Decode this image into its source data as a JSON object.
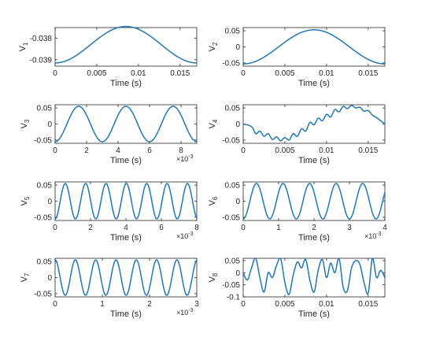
{
  "chart_data": [
    {
      "type": "line",
      "ylabel_main": "V",
      "ylabel_sub": "1",
      "xlabel": "Time (s)",
      "xlim": [
        0,
        0.017
      ],
      "ylim": [
        -0.0393,
        -0.0375
      ],
      "xticks": [
        0,
        0.005,
        0.01,
        0.015
      ],
      "xtick_labels": [
        "0",
        "0.005",
        "0.01",
        "0.015"
      ],
      "yticks": [
        -0.039,
        -0.038
      ],
      "ytick_labels": [
        "-0.039",
        "-0.038"
      ],
      "x_multiplier": "",
      "series": [
        {
          "values": {
            "kind": "cosine",
            "mean": -0.0383,
            "amplitude": 0.00085,
            "period": 0.017,
            "phase": 3.14159
          }
        }
      ]
    },
    {
      "type": "line",
      "ylabel_main": "V",
      "ylabel_sub": "2",
      "xlabel": "Time (s)",
      "xlim": [
        0,
        0.017
      ],
      "ylim": [
        -0.06,
        0.06
      ],
      "xticks": [
        0,
        0.005,
        0.01,
        0.015
      ],
      "xtick_labels": [
        "0",
        "0.005",
        "0.01",
        "0.015"
      ],
      "yticks": [
        -0.05,
        0,
        0.05
      ],
      "ytick_labels": [
        "-0.05",
        "0",
        "0.05"
      ],
      "x_multiplier": "",
      "series": [
        {
          "values": {
            "kind": "cosine",
            "mean": 0,
            "amplitude": 0.053,
            "period": 0.017,
            "phase": 3.14159
          }
        }
      ]
    },
    {
      "type": "line",
      "ylabel_main": "V",
      "ylabel_sub": "3",
      "xlabel": "Time (s)",
      "xlim": [
        0,
        9
      ],
      "ylim": [
        -0.06,
        0.06
      ],
      "xticks": [
        0,
        2,
        4,
        6,
        8
      ],
      "xtick_labels": [
        "0",
        "2",
        "4",
        "6",
        "8"
      ],
      "yticks": [
        -0.05,
        0,
        0.05
      ],
      "ytick_labels": [
        "-0.05",
        "0",
        "0.05"
      ],
      "x_multiplier": "×10",
      "x_multiplier_exp": "-3",
      "series": [
        {
          "values": {
            "kind": "cosine",
            "mean": 0,
            "amplitude": 0.055,
            "period": 3.0,
            "phase": 3.14159
          }
        }
      ]
    },
    {
      "type": "line",
      "ylabel_main": "V",
      "ylabel_sub": "4",
      "xlabel": "Time (s)",
      "xlim": [
        0,
        0.017
      ],
      "ylim": [
        -0.06,
        0.06
      ],
      "xticks": [
        0,
        0.005,
        0.01,
        0.015
      ],
      "xtick_labels": [
        "0",
        "0.005",
        "0.01",
        "0.015"
      ],
      "yticks": [
        -0.05,
        0,
        0.05
      ],
      "ytick_labels": [
        "-0.05",
        "0",
        "0.05"
      ],
      "x_multiplier": "",
      "series": [
        {
          "values": {
            "kind": "points",
            "x": [
              0,
              0.001,
              0.0015,
              0.002,
              0.0025,
              0.003,
              0.0035,
              0.004,
              0.0045,
              0.005,
              0.0055,
              0.006,
              0.0065,
              0.007,
              0.0075,
              0.008,
              0.0085,
              0.009,
              0.0095,
              0.01,
              0.0105,
              0.011,
              0.0115,
              0.012,
              0.0125,
              0.013,
              0.0135,
              0.014,
              0.0145,
              0.015,
              0.0155,
              0.016,
              0.017
            ],
            "y": [
              0,
              -0.008,
              -0.03,
              -0.022,
              -0.038,
              -0.03,
              -0.048,
              -0.04,
              -0.052,
              -0.042,
              -0.05,
              -0.03,
              -0.038,
              -0.015,
              -0.022,
              0.005,
              -0.002,
              0.018,
              0.01,
              0.03,
              0.022,
              0.045,
              0.038,
              0.055,
              0.048,
              0.058,
              0.05,
              0.052,
              0.04,
              0.042,
              0.028,
              0.02,
              0.0
            ]
          }
        }
      ]
    },
    {
      "type": "line",
      "ylabel_main": "V",
      "ylabel_sub": "5",
      "xlabel": "Time (s)",
      "xlim": [
        0,
        8
      ],
      "ylim": [
        -0.06,
        0.06
      ],
      "xticks": [
        0,
        2,
        4,
        6,
        8
      ],
      "xtick_labels": [
        "0",
        "2",
        "4",
        "6",
        "8"
      ],
      "yticks": [
        -0.05,
        0,
        0.05
      ],
      "ytick_labels": [
        "-0.05",
        "0",
        "0.05"
      ],
      "x_multiplier": "×10",
      "x_multiplier_exp": "-3",
      "series": [
        {
          "values": {
            "kind": "cosine",
            "mean": 0,
            "amplitude": 0.055,
            "period": 1.15,
            "phase": 3.14159
          }
        }
      ]
    },
    {
      "type": "line",
      "ylabel_main": "V",
      "ylabel_sub": "6",
      "xlabel": "Time (s)",
      "xlim": [
        0,
        4
      ],
      "ylim": [
        -0.06,
        0.06
      ],
      "xticks": [
        0,
        1,
        2,
        3,
        4
      ],
      "xtick_labels": [
        "0",
        "1",
        "2",
        "3",
        "4"
      ],
      "yticks": [
        -0.05,
        0,
        0.05
      ],
      "ytick_labels": [
        "-0.05",
        "0",
        "0.05"
      ],
      "x_multiplier": "×10",
      "x_multiplier_exp": "-3",
      "series": [
        {
          "values": {
            "kind": "cosine",
            "mean": 0,
            "amplitude": 0.055,
            "period": 0.75,
            "phase": 3.14159
          }
        }
      ]
    },
    {
      "type": "line",
      "ylabel_main": "V",
      "ylabel_sub": "7",
      "xlabel": "Time (s)",
      "xlim": [
        0,
        3
      ],
      "ylim": [
        -0.06,
        0.06
      ],
      "xticks": [
        0,
        1,
        2,
        3
      ],
      "xtick_labels": [
        "0",
        "1",
        "2",
        "3"
      ],
      "yticks": [
        -0.05,
        0,
        0.05
      ],
      "ytick_labels": [
        "-0.05",
        "0",
        "0.05"
      ],
      "x_multiplier": "×10",
      "x_multiplier_exp": "-3",
      "series": [
        {
          "values": {
            "kind": "cosine",
            "mean": 0,
            "amplitude": 0.055,
            "period": 0.43,
            "phase": 0
          }
        }
      ]
    },
    {
      "type": "line",
      "ylabel_main": "V",
      "ylabel_sub": "8",
      "xlabel": "Time (s)",
      "xlim": [
        0,
        0.017
      ],
      "ylim": [
        -0.1,
        0.06
      ],
      "xticks": [
        0,
        0.005,
        0.01,
        0.015
      ],
      "xtick_labels": [
        "0",
        "0.005",
        "0.01",
        "0.015"
      ],
      "yticks": [
        -0.1,
        -0.05,
        0,
        0.05
      ],
      "ytick_labels": [
        "-0.1",
        "-0.05",
        "0",
        "0.05"
      ],
      "x_multiplier": "",
      "series": [
        {
          "values": {
            "kind": "points",
            "x": [
              0,
              0.0005,
              0.001,
              0.0015,
              0.002,
              0.0025,
              0.003,
              0.0035,
              0.004,
              0.0045,
              0.005,
              0.0055,
              0.006,
              0.0065,
              0.007,
              0.0075,
              0.008,
              0.0085,
              0.009,
              0.0095,
              0.01,
              0.0105,
              0.011,
              0.0115,
              0.012,
              0.0125,
              0.013,
              0.0135,
              0.014,
              0.0145,
              0.015,
              0.0155,
              0.016,
              0.0165,
              0.017
            ],
            "y": [
              0.0,
              -0.03,
              0.02,
              0.06,
              -0.02,
              -0.08,
              0.0,
              -0.02,
              0.03,
              0.058,
              -0.04,
              -0.09,
              -0.01,
              0.045,
              0.02,
              0.055,
              -0.03,
              -0.08,
              0.01,
              0.055,
              -0.02,
              0.04,
              0.0,
              0.06,
              -0.06,
              -0.075,
              0.02,
              0.05,
              0.035,
              -0.04,
              -0.085,
              0.06,
              -0.02,
              0.01,
              -0.02
            ]
          }
        }
      ]
    }
  ]
}
